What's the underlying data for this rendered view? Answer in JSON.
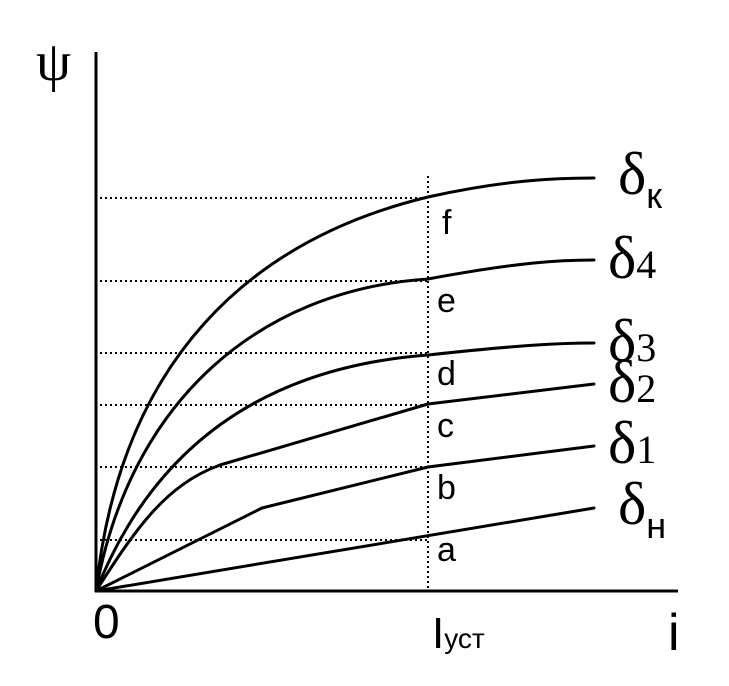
{
  "axes": {
    "y_symbol": "ψ",
    "x_symbol": "i",
    "origin_label": "0",
    "marker_main": "I",
    "marker_sub": "уст"
  },
  "curves": [
    {
      "id": "n",
      "base": "δ",
      "sub": "н"
    },
    {
      "id": "1",
      "base": "δ",
      "sub": "1"
    },
    {
      "id": "2",
      "base": "δ",
      "sub": "2"
    },
    {
      "id": "3",
      "base": "δ",
      "sub": "3"
    },
    {
      "id": "4",
      "base": "δ",
      "sub": "4"
    },
    {
      "id": "k",
      "base": "δ",
      "sub": "к"
    }
  ],
  "intersections": [
    "a",
    "b",
    "c",
    "d",
    "e",
    "f"
  ],
  "colors": {
    "line": "#000000",
    "background": "#ffffff"
  }
}
